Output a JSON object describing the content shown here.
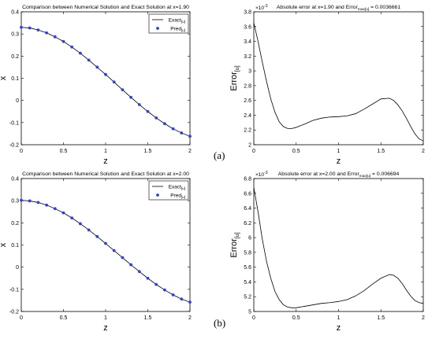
{
  "panel_labels": [
    "(a)",
    "(b)"
  ],
  "chart_data": [
    {
      "type": "line",
      "title": "Comparison between Numerical Solution and Exact Solution at x=1.90",
      "xlabel": "z",
      "ylabel": "x",
      "xlim": [
        0,
        2
      ],
      "ylim": [
        -0.2,
        0.4
      ],
      "xticks": [
        "0",
        "0.5",
        "1",
        "1.5",
        "2"
      ],
      "yticks": [
        "-0.2",
        "-0.1",
        "0",
        "0.1",
        "0.2",
        "0.3",
        "0.4"
      ],
      "legend_position": "top-right",
      "legend": [
        {
          "label": "Exact",
          "sub": "[u]",
          "style": "line"
        },
        {
          "label": "Pred",
          "sub": "[u]",
          "style": "marker"
        }
      ],
      "series": [
        {
          "name": "Exact[u]",
          "style": "line",
          "x": [
            0,
            0.1,
            0.2,
            0.3,
            0.4,
            0.5,
            0.6,
            0.7,
            0.8,
            0.9,
            1.0,
            1.1,
            1.2,
            1.3,
            1.4,
            1.5,
            1.6,
            1.7,
            1.8,
            1.9,
            2.0
          ],
          "y": [
            0.33,
            0.327,
            0.318,
            0.305,
            0.287,
            0.266,
            0.241,
            0.213,
            0.182,
            0.15,
            0.117,
            0.083,
            0.048,
            0.014,
            -0.019,
            -0.05,
            -0.079,
            -0.105,
            -0.128,
            -0.147,
            -0.162
          ]
        },
        {
          "name": "Pred[u]",
          "style": "marker",
          "x": [
            0,
            0.1,
            0.2,
            0.3,
            0.4,
            0.5,
            0.6,
            0.7,
            0.8,
            0.9,
            1.0,
            1.1,
            1.2,
            1.3,
            1.4,
            1.5,
            1.6,
            1.7,
            1.8,
            1.9,
            2.0
          ],
          "y": [
            0.33,
            0.327,
            0.318,
            0.305,
            0.287,
            0.266,
            0.241,
            0.213,
            0.182,
            0.15,
            0.117,
            0.083,
            0.048,
            0.014,
            -0.019,
            -0.05,
            -0.079,
            -0.105,
            -0.128,
            -0.147,
            -0.162
          ]
        }
      ]
    },
    {
      "type": "line",
      "title": "Absolute error at x=1.90 and Error",
      "title_sub": "max[u]",
      "title_tail": " = 0.0036661",
      "xlabel": "z",
      "ylabel": "Error",
      "ylabel_sub": "[u]",
      "exponent": "×10",
      "exponent_power": "-3",
      "xlim": [
        0,
        2
      ],
      "ylim": [
        2.0,
        3.8
      ],
      "xticks": [
        "0",
        "0.5",
        "1",
        "1.5",
        "2"
      ],
      "yticks": [
        "2",
        "2.2",
        "2.4",
        "2.6",
        "2.8",
        "3",
        "3.2",
        "3.4",
        "3.6",
        "3.8"
      ],
      "series": [
        {
          "style": "line",
          "x": [
            0,
            0.05,
            0.1,
            0.15,
            0.2,
            0.25,
            0.3,
            0.35,
            0.4,
            0.45,
            0.5,
            0.6,
            0.7,
            0.8,
            0.9,
            1.0,
            1.1,
            1.2,
            1.3,
            1.4,
            1.5,
            1.6,
            1.65,
            1.7,
            1.75,
            1.8,
            1.85,
            1.9,
            1.95,
            2.0
          ],
          "y": [
            3.65,
            3.4,
            3.12,
            2.86,
            2.62,
            2.44,
            2.31,
            2.245,
            2.22,
            2.22,
            2.235,
            2.28,
            2.33,
            2.36,
            2.375,
            2.38,
            2.39,
            2.42,
            2.48,
            2.55,
            2.62,
            2.63,
            2.6,
            2.54,
            2.46,
            2.36,
            2.25,
            2.15,
            2.08,
            2.05
          ]
        }
      ]
    },
    {
      "type": "line",
      "title": "Comparison between Numerical Solution and Exact Solution at x=2.00",
      "xlabel": "z",
      "ylabel": "x",
      "xlim": [
        0,
        2
      ],
      "ylim": [
        -0.2,
        0.4
      ],
      "xticks": [
        "0",
        "0.5",
        "1",
        "1.5",
        "2"
      ],
      "yticks": [
        "-0.2",
        "-0.1",
        "0",
        "0.1",
        "0.2",
        "0.3",
        "0.4"
      ],
      "legend_position": "top-right",
      "legend": [
        {
          "label": "Exact",
          "sub": "[u]",
          "style": "line"
        },
        {
          "label": "Pred",
          "sub": "[u]",
          "style": "marker"
        }
      ],
      "series": [
        {
          "name": "Exact[u]",
          "style": "line",
          "x": [
            0,
            0.1,
            0.2,
            0.3,
            0.4,
            0.5,
            0.6,
            0.7,
            0.8,
            0.9,
            1.0,
            1.1,
            1.2,
            1.3,
            1.4,
            1.5,
            1.6,
            1.7,
            1.8,
            1.9,
            2.0
          ],
          "y": [
            0.302,
            0.299,
            0.292,
            0.28,
            0.264,
            0.245,
            0.222,
            0.196,
            0.168,
            0.138,
            0.107,
            0.075,
            0.043,
            0.011,
            -0.02,
            -0.05,
            -0.078,
            -0.103,
            -0.125,
            -0.144,
            -0.158
          ]
        },
        {
          "name": "Pred[u]",
          "style": "marker",
          "x": [
            0,
            0.1,
            0.2,
            0.3,
            0.4,
            0.5,
            0.6,
            0.7,
            0.8,
            0.9,
            1.0,
            1.1,
            1.2,
            1.3,
            1.4,
            1.5,
            1.6,
            1.7,
            1.8,
            1.9,
            2.0
          ],
          "y": [
            0.302,
            0.299,
            0.292,
            0.28,
            0.264,
            0.245,
            0.222,
            0.196,
            0.168,
            0.138,
            0.107,
            0.075,
            0.043,
            0.011,
            -0.02,
            -0.05,
            -0.078,
            -0.103,
            -0.125,
            -0.144,
            -0.158
          ]
        }
      ]
    },
    {
      "type": "line",
      "title": "Absolute error at x=2.00 and Error",
      "title_sub": "max[u]",
      "title_tail": " = 0.006694",
      "xlabel": "z",
      "ylabel": "Error",
      "ylabel_sub": "[u]",
      "exponent": "×10",
      "exponent_power": "-3",
      "xlim": [
        0,
        2
      ],
      "ylim": [
        5.0,
        6.8
      ],
      "xticks": [
        "0",
        "0.5",
        "1",
        "1.5",
        "2"
      ],
      "yticks": [
        "5",
        "5.2",
        "5.4",
        "5.6",
        "5.8",
        "6",
        "6.2",
        "6.4",
        "6.6",
        "6.8"
      ],
      "series": [
        {
          "style": "line",
          "x": [
            0,
            0.05,
            0.1,
            0.15,
            0.2,
            0.25,
            0.3,
            0.35,
            0.4,
            0.45,
            0.5,
            0.6,
            0.7,
            0.8,
            0.9,
            1.0,
            1.1,
            1.2,
            1.3,
            1.4,
            1.5,
            1.6,
            1.65,
            1.7,
            1.75,
            1.8,
            1.85,
            1.9,
            1.95,
            2.0
          ],
          "y": [
            6.68,
            6.35,
            5.98,
            5.68,
            5.45,
            5.27,
            5.16,
            5.09,
            5.06,
            5.05,
            5.05,
            5.07,
            5.09,
            5.11,
            5.12,
            5.135,
            5.16,
            5.21,
            5.28,
            5.37,
            5.45,
            5.5,
            5.49,
            5.45,
            5.38,
            5.29,
            5.21,
            5.15,
            5.12,
            5.11
          ]
        }
      ]
    }
  ]
}
